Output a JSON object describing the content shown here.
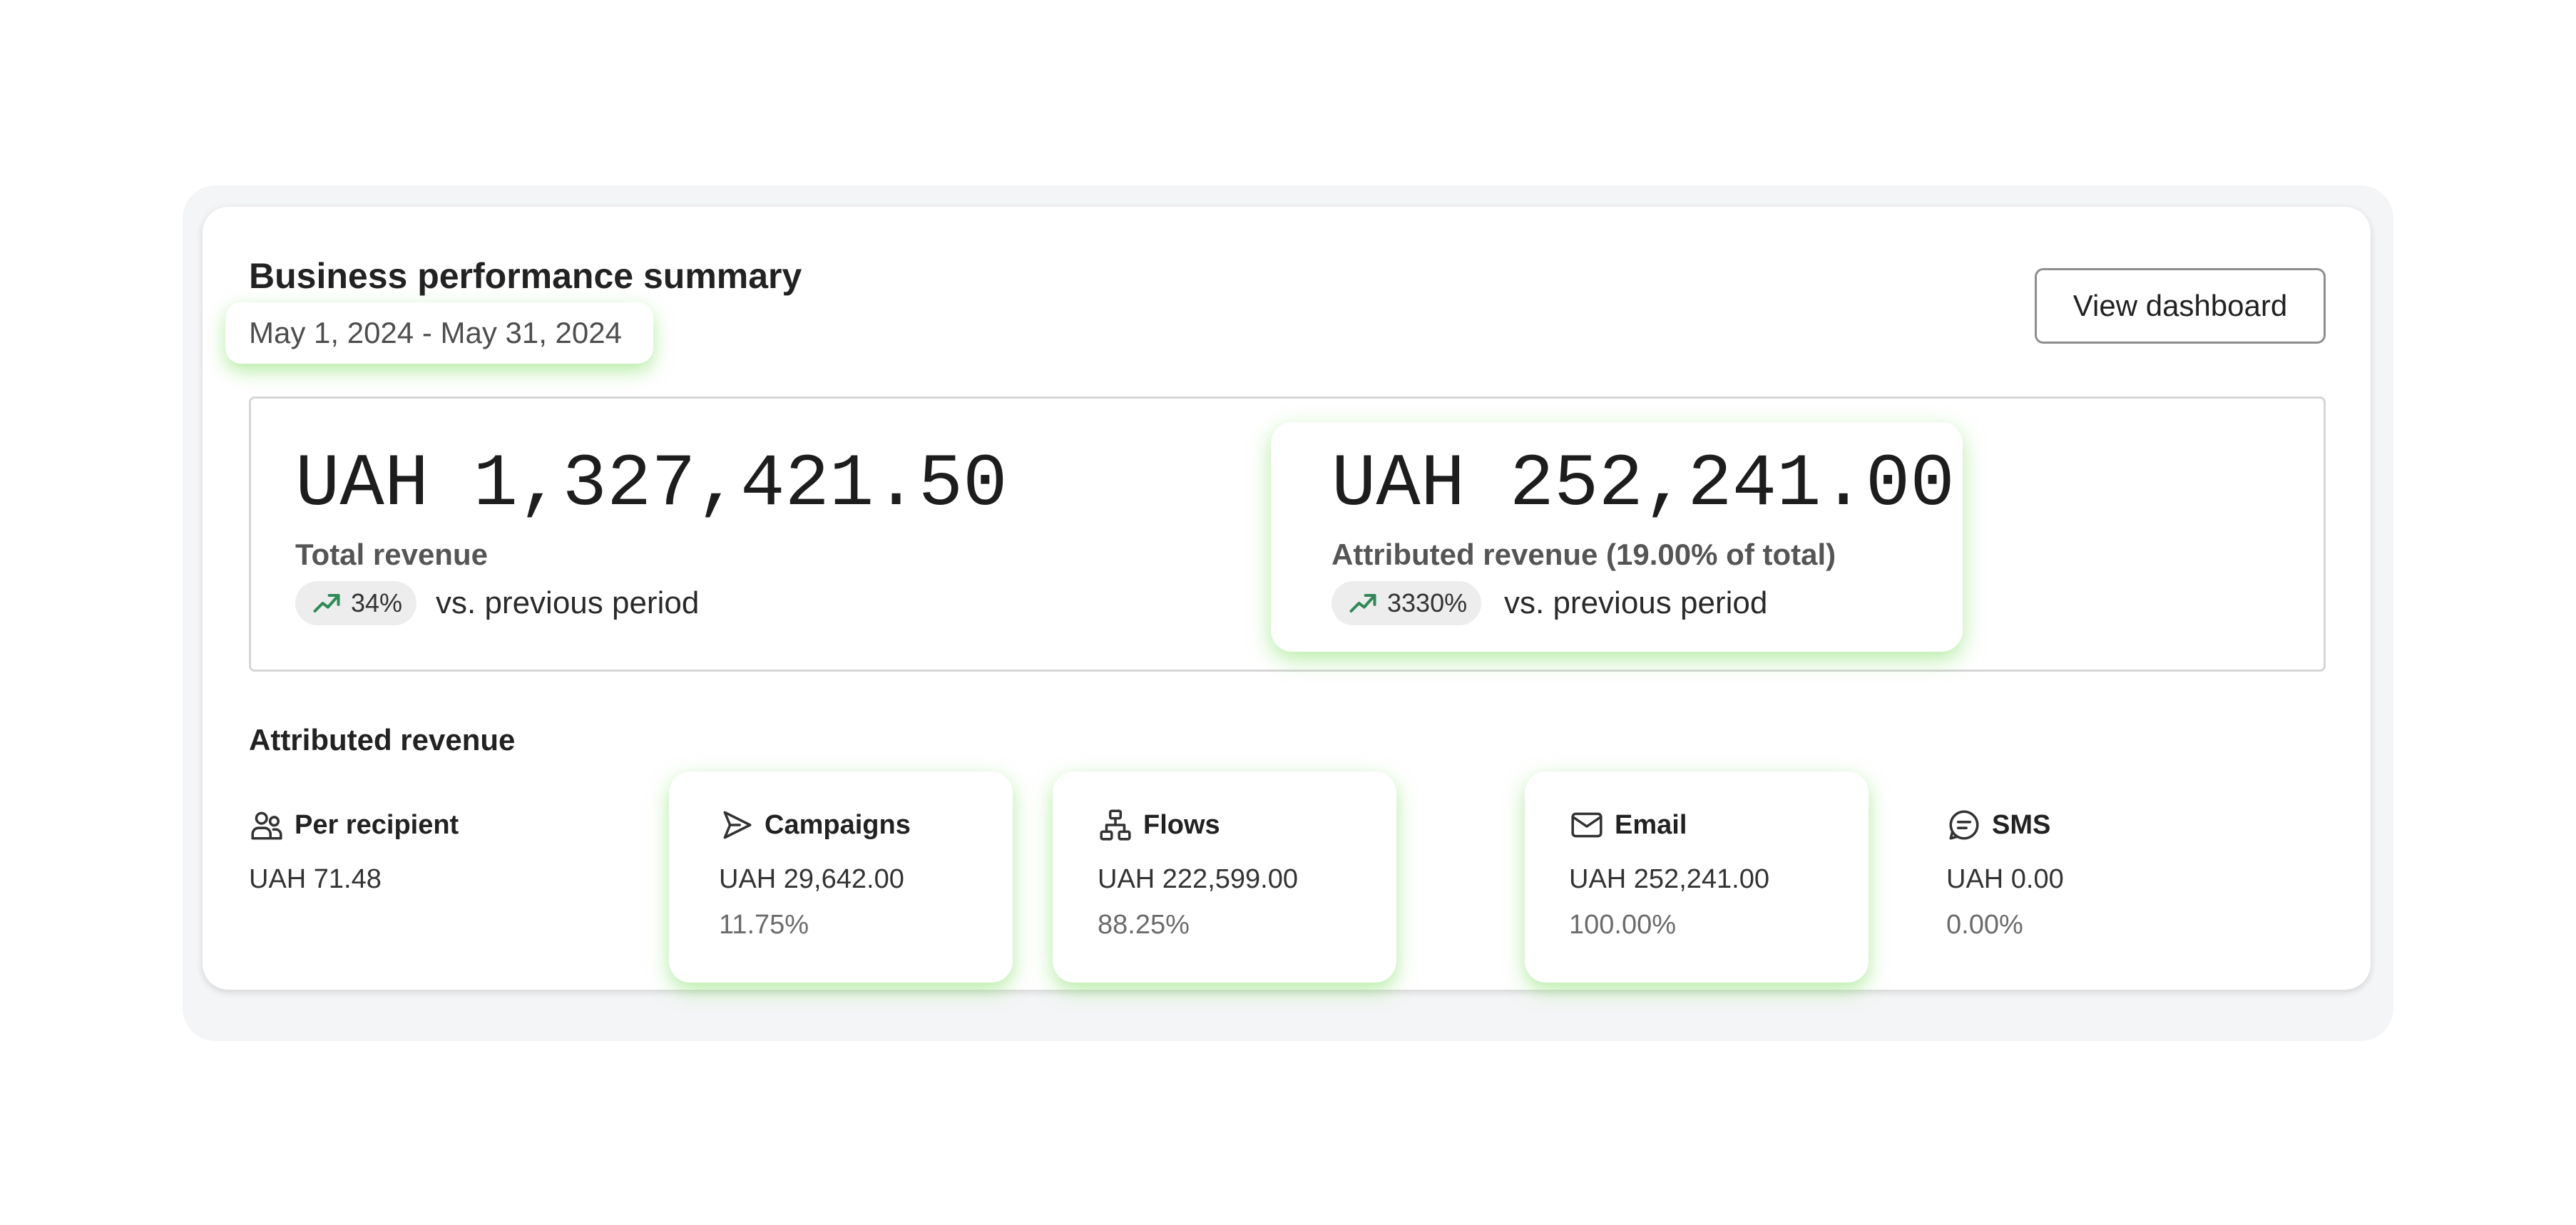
{
  "header": {
    "title": "Business performance summary",
    "date_range": "May 1, 2024 - May 31, 2024",
    "view_dashboard_label": "View dashboard"
  },
  "summary": {
    "total": {
      "value": "UAH 1,327,421.50",
      "label": "Total revenue",
      "change": "34%",
      "comparison": "vs. previous period",
      "trend_icon": "trending-up-icon"
    },
    "attributed": {
      "value": "UAH 252,241.00",
      "label": "Attributed revenue (19.00% of total)",
      "change": "3330%",
      "comparison": "vs. previous period",
      "trend_icon": "trending-up-icon"
    }
  },
  "attributed_section": {
    "heading": "Attributed revenue",
    "per_recipient": {
      "label": "Per recipient",
      "value": "UAH 71.48",
      "icon": "users-icon"
    },
    "campaigns": {
      "label": "Campaigns",
      "value": "UAH 29,642.00",
      "percent": "11.75%",
      "icon": "send-icon"
    },
    "flows": {
      "label": "Flows",
      "value": "UAH 222,599.00",
      "percent": "88.25%",
      "icon": "flow-icon"
    },
    "email": {
      "label": "Email",
      "value": "UAH 252,241.00",
      "percent": "100.00%",
      "icon": "mail-icon"
    },
    "sms": {
      "label": "SMS",
      "value": "UAH 0.00",
      "percent": "0.00%",
      "icon": "message-icon"
    }
  },
  "colors": {
    "highlight_glow": "#8fdc6e",
    "trend_green": "#2e8b57",
    "badge_bg": "#ededed",
    "border": "#d6d6d6"
  }
}
